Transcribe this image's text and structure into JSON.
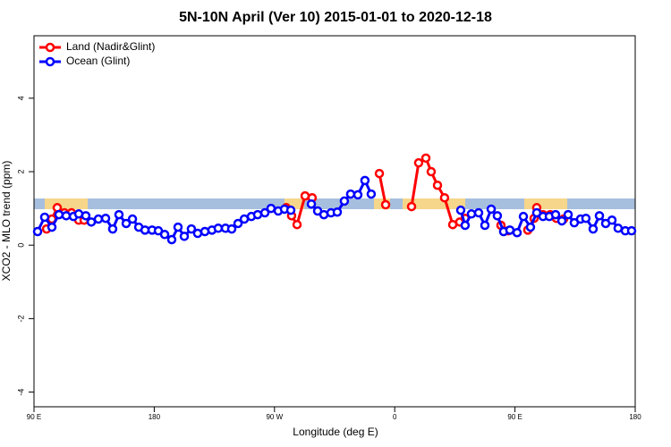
{
  "chart_data": {
    "type": "line",
    "title": "5N-10N April (Ver 10)   2015-01-01 to 2020-12-18",
    "x_label": "Longitude (deg E)",
    "y_label": "XCO2 - MLO trend (ppm)",
    "xlim": [
      90,
      540
    ],
    "ylim": [
      -4.4,
      5.7
    ],
    "xticks": [
      {
        "value": 90,
        "label": "90 E"
      },
      {
        "value": 180,
        "label": "180"
      },
      {
        "value": 270,
        "label": "90 W"
      },
      {
        "value": 360,
        "label": "0"
      },
      {
        "value": 450,
        "label": "90 E"
      },
      {
        "value": 540,
        "label": "180"
      }
    ],
    "yticks": [
      -4,
      -2,
      0,
      2,
      4
    ],
    "legend": "top-left",
    "series": [
      {
        "name": "Land (Nadir&Glint)",
        "color": "#ff0000",
        "x": [
          99.4,
          103.4,
          107.4,
          112.8,
          118.1,
          123.5,
          127.5,
          null,
          278.8,
          282.8,
          286.9,
          292.9,
          298.2,
          null,
          348.5,
          353.2,
          null,
          372.6,
          377.9,
          383.3,
          387.3,
          392.0,
          397.3,
          403.4,
          408.7,
          412.7,
          null,
          439.5,
          444.9,
          null,
          459.6,
          464.3,
          466.3,
          471.0,
          476.4,
          481.0,
          486.4
        ],
        "values": [
          0.44,
          0.71,
          1.02,
          0.88,
          0.88,
          0.68,
          0.68,
          null,
          1.02,
          0.8,
          0.56,
          1.34,
          1.29,
          null,
          1.95,
          1.1,
          null,
          1.05,
          2.24,
          2.37,
          2.0,
          1.63,
          1.29,
          0.56,
          0.63,
          0.73,
          null,
          0.54,
          0.39,
          null,
          0.41,
          0.73,
          1.02,
          0.83,
          0.83,
          0.73,
          0.71
        ]
      },
      {
        "name": "Ocean (Glint)",
        "color": "#0000ff",
        "x": [
          92.7,
          98.0,
          103.4,
          108.7,
          114.1,
          119.5,
          123.5,
          128.8,
          132.9,
          138.2,
          143.6,
          148.9,
          153.6,
          159.0,
          163.7,
          168.4,
          173.1,
          178.4,
          183.1,
          187.8,
          193.1,
          197.8,
          202.5,
          207.8,
          212.5,
          217.9,
          223.2,
          227.9,
          233.3,
          238.0,
          242.7,
          247.4,
          252.7,
          257.4,
          262.8,
          267.4,
          272.8,
          277.5,
          282.2,
          null,
          297.6,
          302.3,
          307.0,
          312.3,
          317.0,
          322.3,
          327.0,
          332.4,
          337.7,
          342.4,
          null,
          409.4,
          412.7,
          417.4,
          422.8,
          427.5,
          432.2,
          436.8,
          441.5,
          446.2,
          451.6,
          456.3,
          461.6,
          466.3,
          471.0,
          475.7,
          480.4,
          485.1,
          489.8,
          494.4,
          499.1,
          503.1,
          508.5,
          513.2,
          517.9,
          522.6,
          527.2,
          532.6,
          537.3
        ],
        "values": [
          0.37,
          0.76,
          0.49,
          0.83,
          0.8,
          0.78,
          0.85,
          0.8,
          0.63,
          0.71,
          0.73,
          0.44,
          0.83,
          0.59,
          0.71,
          0.49,
          0.41,
          0.41,
          0.39,
          0.29,
          0.15,
          0.49,
          0.24,
          0.44,
          0.32,
          0.37,
          0.41,
          0.46,
          0.46,
          0.44,
          0.59,
          0.71,
          0.78,
          0.83,
          0.88,
          1.0,
          0.93,
          0.98,
          0.95,
          null,
          1.12,
          0.93,
          0.83,
          0.88,
          0.9,
          1.2,
          1.39,
          1.37,
          1.76,
          1.39,
          null,
          0.95,
          0.54,
          0.85,
          0.88,
          0.54,
          0.98,
          0.8,
          0.37,
          0.41,
          0.34,
          0.78,
          0.49,
          0.88,
          0.78,
          0.78,
          0.83,
          0.66,
          0.83,
          0.61,
          0.71,
          0.73,
          0.44,
          0.8,
          0.59,
          0.68,
          0.46,
          0.39,
          0.39
        ]
      }
    ]
  }
}
